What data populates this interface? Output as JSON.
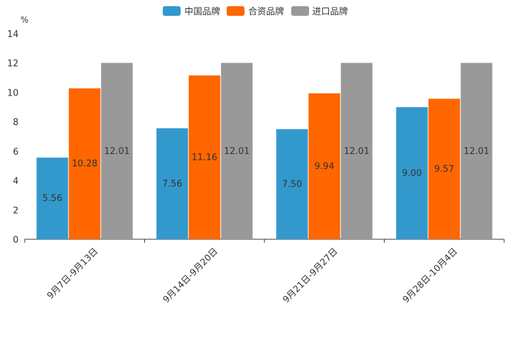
{
  "chart_data": {
    "type": "bar",
    "unit": "%",
    "categories": [
      "9月7日-9月13日",
      "9月14日-9月20日",
      "9月21日-9月27日",
      "9月28日-10月4日"
    ],
    "series": [
      {
        "name": "中国品牌",
        "color": "#3399cc",
        "values": [
          5.56,
          7.56,
          7.5,
          9.0
        ],
        "labels": [
          "5.56",
          "7.56",
          "7.50",
          "9.00"
        ]
      },
      {
        "name": "合资品牌",
        "color": "#ff6600",
        "values": [
          10.28,
          11.16,
          9.94,
          9.57
        ],
        "labels": [
          "10.28",
          "11.16",
          "9.94",
          "9.57"
        ]
      },
      {
        "name": "进口品牌",
        "color": "#999999",
        "values": [
          12.01,
          12.01,
          12.01,
          12.01
        ],
        "labels": [
          "12.01",
          "12.01",
          "12.01",
          "12.01"
        ]
      }
    ],
    "ylim": [
      0,
      14
    ],
    "yticks": [
      0,
      2,
      4,
      6,
      8,
      10,
      12,
      14
    ],
    "legend_position": "top-center",
    "grid": false
  }
}
